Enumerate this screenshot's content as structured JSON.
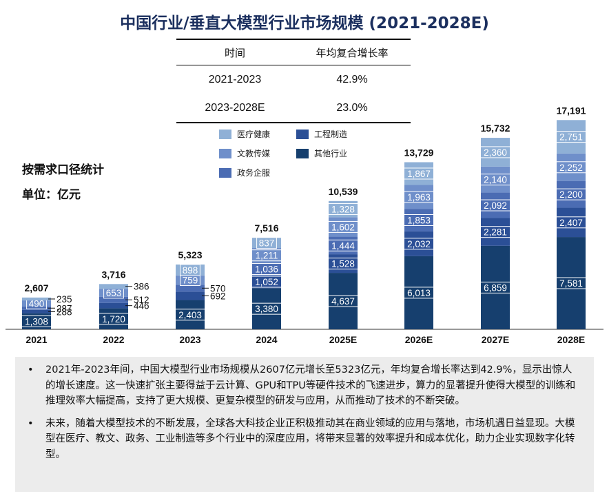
{
  "title": "中国行业/垂直大模型行业市场规模 (2021-2028E)",
  "cagr_table": {
    "headers": [
      "时间",
      "年均复合增长率"
    ],
    "rows": [
      [
        "2021-2023",
        "42.9%"
      ],
      [
        "2023-2028E",
        "23.0%"
      ]
    ]
  },
  "side_notes": {
    "basis": "按需求口径统计",
    "unit": "单位：亿元"
  },
  "legend": [
    {
      "name": "医疗健康",
      "color": "#8fb0d6"
    },
    {
      "name": "工程制造",
      "color": "#2b4f96"
    },
    {
      "name": "文教传媒",
      "color": "#6f8fca"
    },
    {
      "name": "其他行业",
      "color": "#163f6e"
    },
    {
      "name": "政务企服",
      "color": "#4b6cb3"
    }
  ],
  "chart_data": {
    "type": "bar",
    "stacked": true,
    "categories": [
      "2021",
      "2022",
      "2023",
      "2024",
      "2025E",
      "2026E",
      "2027E",
      "2028E"
    ],
    "series": [
      {
        "name": "其他行业",
        "color": "#163f6e",
        "values": [
          1308,
          1720,
          2403,
          3380,
          4637,
          6013,
          6859,
          7581
        ]
      },
      {
        "name": "工程制造",
        "color": "#2b4f96",
        "values": [
          288,
          446,
          692,
          1052,
          1528,
          2032,
          2281,
          2407
        ]
      },
      {
        "name": "政务企服",
        "color": "#4b6cb3",
        "values": [
          287,
          512,
          570,
          1036,
          1444,
          1853,
          2092,
          2200
        ]
      },
      {
        "name": "文教传媒",
        "color": "#6f8fca",
        "values": [
          490,
          653,
          759,
          1211,
          1602,
          1963,
          2140,
          2252
        ]
      },
      {
        "name": "医疗健康",
        "color": "#8fb0d6",
        "values": [
          235,
          386,
          898,
          837,
          1328,
          1867,
          2360,
          2751
        ]
      }
    ],
    "totals": [
      "2,607",
      "3,716",
      "5,323",
      "7,516",
      "10,539",
      "13,729",
      "15,732",
      "17,191"
    ],
    "segment_labels": [
      [
        "1,308",
        null,
        null,
        "490",
        null
      ],
      [
        "1,720",
        null,
        null,
        "653",
        null
      ],
      [
        "2,403",
        null,
        null,
        "759",
        "898"
      ],
      [
        "3,380",
        "1,052",
        "1,036",
        "1,211",
        "837"
      ],
      [
        "4,637",
        "1,528",
        "1,444",
        "1,602",
        "1,328"
      ],
      [
        "6,013",
        "2,032",
        "1,853",
        "1,963",
        "1,867"
      ],
      [
        "6,859",
        "2,281",
        "2,092",
        "2,140",
        "2,360"
      ],
      [
        "7,581",
        "2,407",
        "2,200",
        "2,252",
        "2,751"
      ]
    ],
    "callouts": [
      {
        "category": "2021",
        "labels": [
          "235",
          "287",
          "288"
        ]
      },
      {
        "category": "2022",
        "labels": [
          "386",
          "512",
          "446"
        ]
      },
      {
        "category": "2023",
        "labels": [
          "570",
          "692"
        ]
      }
    ],
    "ylim": [
      0,
      18000
    ]
  },
  "notes": [
    "2021年-2023年间，中国大模型行业市场规模从2607亿元增长至5323亿元，年均复合增长率达到42.9%，显示出惊人的增长速度。这一快速扩张主要得益于云计算、GPU和TPU等硬件技术的飞速进步，算力的显著提升使得大模型的训练和推理效率大幅提高，支持了更大规模、更复杂模型的研发与应用，从而推动了技术的不断突破。",
    "未来，随着大模型技术的不断发展，全球各大科技企业正积极推动其在商业领域的应用与落地，市场机遇日益显现。大模型在医疗、教文、政务、工业制造等多个行业中的深度应用，将带来显著的效率提升和成本优化，助力企业实现数字化转型。"
  ],
  "bullet_glyph": "•"
}
